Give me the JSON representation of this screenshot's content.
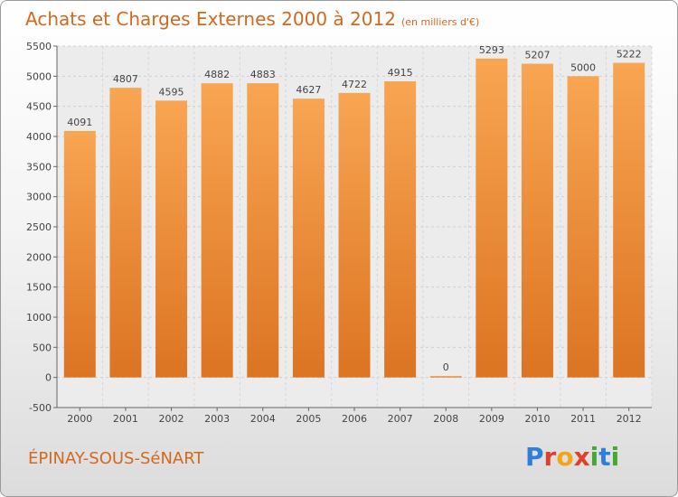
{
  "title": {
    "main": "Achats et Charges Externes 2000 à 2012",
    "unit": "(en milliers d'€)"
  },
  "footer": {
    "city": "ÉPINAY-SOUS-SéNART",
    "logo_letters": [
      "P",
      "r",
      "o",
      "x",
      "i",
      "t",
      "i"
    ],
    "logo_colors": [
      "#2f7fd8",
      "#e0402b",
      "#f2a516",
      "#e0402b",
      "#46a832",
      "#2f7fd8",
      "#46a832"
    ]
  },
  "colors": {
    "bar_light": "#f8a552",
    "bar_dark": "#dc7422",
    "title": "#d2691e"
  },
  "chart_data": {
    "type": "bar",
    "categories": [
      "2000",
      "2001",
      "2002",
      "2003",
      "2004",
      "2005",
      "2006",
      "2007",
      "2008",
      "2009",
      "2010",
      "2011",
      "2012"
    ],
    "values": [
      4091,
      4807,
      4595,
      4882,
      4883,
      4627,
      4722,
      4915,
      0,
      5293,
      5207,
      5000,
      5222
    ],
    "value_labels": [
      "4091",
      "4807",
      "4595",
      "4882",
      "4883",
      "4627",
      "4722",
      "4915",
      "0",
      "5293",
      "5207",
      "5000",
      "5222"
    ],
    "title": "Achats et Charges Externes 2000 à 2012",
    "xlabel": "",
    "ylabel": "",
    "ylim": [
      -500,
      5500
    ],
    "yticks": [
      -500,
      0,
      500,
      1000,
      1500,
      2000,
      2500,
      3000,
      3500,
      4000,
      4500,
      5000,
      5500
    ],
    "ytick_labels": [
      "-500",
      "0",
      "500",
      "1000",
      "1500",
      "2000",
      "2500",
      "3000",
      "3500",
      "4000",
      "4500",
      "5000",
      "5500"
    ],
    "grid": true,
    "legend": "none"
  }
}
